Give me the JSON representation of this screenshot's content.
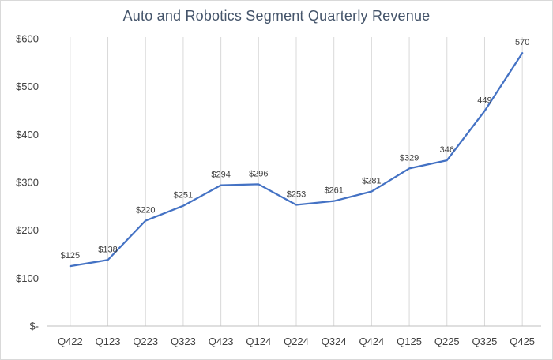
{
  "chart_data": {
    "type": "line",
    "title": "Auto and Robotics Segment Quarterly Revenue",
    "categories": [
      "Q422",
      "Q123",
      "Q223",
      "Q323",
      "Q423",
      "Q124",
      "Q224",
      "Q324",
      "Q424",
      "Q125",
      "Q225",
      "Q325",
      "Q425"
    ],
    "values": [
      125,
      138,
      220,
      251,
      294,
      296,
      253,
      261,
      281,
      329,
      346,
      449,
      570
    ],
    "data_labels": [
      "$125",
      "$138",
      "$220",
      "$251",
      "$294",
      "$296",
      "$253",
      "$261",
      "$281",
      "$329",
      "346",
      "449",
      "570"
    ],
    "y_tick_labels": [
      "$-",
      "$100",
      "$200",
      "$300",
      "$400",
      "$500",
      "$600"
    ],
    "y_tick_values": [
      0,
      100,
      200,
      300,
      400,
      500,
      600
    ],
    "ylim": [
      0,
      600
    ],
    "xlabel": "",
    "ylabel": "",
    "grid": "vertical-category-gridlines",
    "legend": "none",
    "markers": "none",
    "colors": {
      "line": "#4472C4",
      "gridline": "#D9D9D9",
      "axis_line": "#BFBFBF",
      "axis_text": "#404040",
      "data_label_text": "#404040",
      "title_text": "#44546A",
      "border": "#D9D9D9",
      "background": "#FFFFFF"
    }
  }
}
